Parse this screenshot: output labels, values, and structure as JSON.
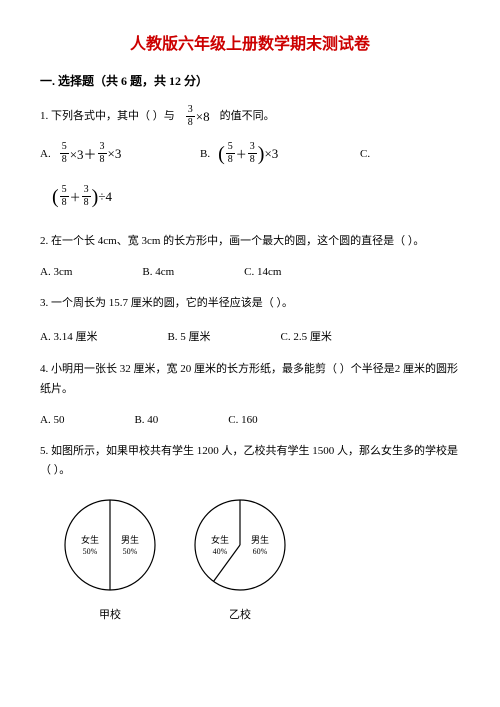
{
  "title": "人教版六年级上册数学期末测试卷",
  "section": "一. 选择题（共 6 题，共 12 分）",
  "q1": {
    "text_a": "1. 下列各式中，其中（   ）与",
    "text_b": "的值不同。",
    "frac_ref": {
      "num": "3",
      "den": "8"
    },
    "mult": "×8",
    "optA_label": "A.",
    "optA_f1": {
      "num": "5",
      "den": "8"
    },
    "optA_mid": "×3＋",
    "optA_f2": {
      "num": "3",
      "den": "8"
    },
    "optA_tail": "×3",
    "optB_label": "B.",
    "optB_f1": {
      "num": "5",
      "den": "8"
    },
    "optB_plus": "＋",
    "optB_f2": {
      "num": "3",
      "den": "8"
    },
    "optB_tail": "×3",
    "optC_label": "C.",
    "optC_f1": {
      "num": "5",
      "den": "8"
    },
    "optC_plus": "＋",
    "optC_f2": {
      "num": "3",
      "den": "8"
    },
    "optC_tail": "÷4"
  },
  "q2": {
    "text": "2. 在一个长 4cm、宽 3cm 的长方形中，画一个最大的圆，这个圆的直径是（   ）。",
    "A": "A. 3cm",
    "B": "B. 4cm",
    "C": "C. 14cm"
  },
  "q3": {
    "text": "3. 一个周长为 15.7 厘米的圆，它的半径应该是（   ）。",
    "A": "A. 3.14 厘米",
    "B": "B. 5 厘米",
    "C": "C. 2.5 厘米"
  },
  "q4": {
    "text": "4. 小明用一张长 32 厘米，宽 20 厘米的长方形纸，最多能剪（   ）个半径是2 厘米的圆形纸片。",
    "A": "A. 50",
    "B": "B. 40",
    "C": "C. 160"
  },
  "q5": {
    "text": "5. 如图所示，如果甲校共有学生 1200 人，乙校共有学生 1500 人，那么女生多的学校是（   ）。"
  },
  "charts": {
    "jia": {
      "label": "甲校",
      "girl_label": "女生",
      "girl_pct": "50%",
      "boy_label": "男生",
      "boy_pct": "50%",
      "girl_angle": 180
    },
    "yi": {
      "label": "乙校",
      "girl_label": "女生",
      "girl_pct": "40%",
      "boy_label": "男生",
      "boy_pct": "60%",
      "girl_angle": 144
    },
    "stroke": "#000000",
    "fill": "#ffffff",
    "radius": 45,
    "fontsize": 9
  }
}
